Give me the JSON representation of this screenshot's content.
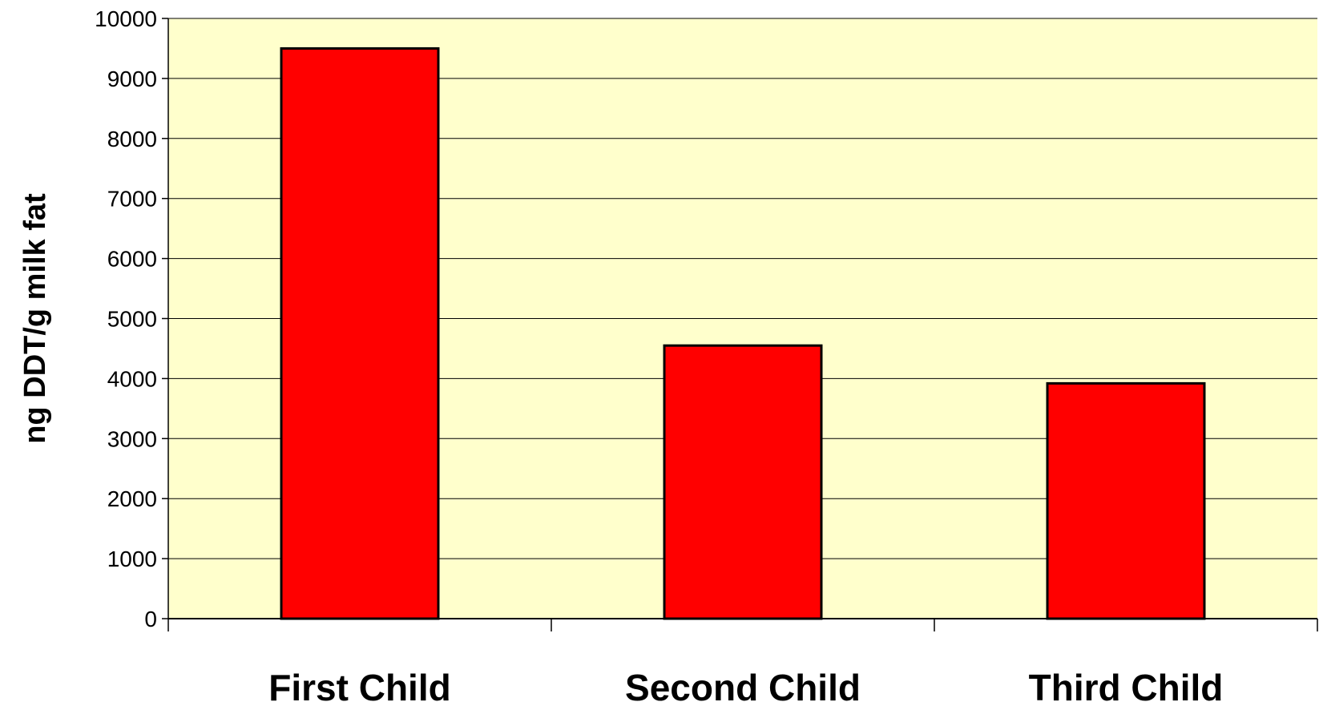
{
  "chart_data": {
    "type": "bar",
    "title": "",
    "xlabel": "",
    "ylabel": "ng DDT/g milk fat",
    "categories": [
      "First Child",
      "Second Child",
      "Third Child"
    ],
    "values": [
      9500,
      4550,
      3920
    ],
    "ylim": [
      0,
      10000
    ],
    "yticks": [
      0,
      1000,
      2000,
      3000,
      4000,
      5000,
      6000,
      7000,
      8000,
      9000,
      10000
    ],
    "grid": true,
    "legend": "none",
    "colors": {
      "bar_fill": "#ff0000",
      "bar_stroke": "#000000",
      "plot_background": "#ffffcc",
      "gridline": "#000000"
    }
  }
}
